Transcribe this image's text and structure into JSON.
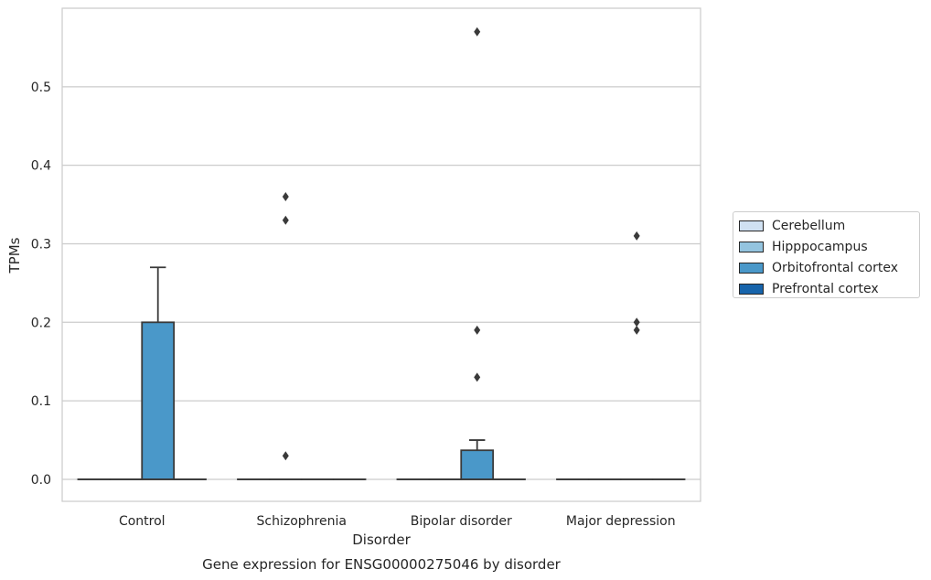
{
  "chart_data": {
    "type": "box",
    "xlabel": "Disorder",
    "ylabel": "TPMs",
    "caption": "Gene expression for ENSG00000275046 by disorder",
    "categories": [
      "Control",
      "Schizophrenia",
      "Bipolar disorder",
      "Major depression"
    ],
    "ylim": [
      -0.028,
      0.6
    ],
    "yticks": [
      "0.0",
      "0.1",
      "0.2",
      "0.3",
      "0.4",
      "0.5"
    ],
    "grid": "horizontal",
    "legend_position": "right",
    "series": [
      {
        "name": "Cerebellum",
        "color": "#d0e1f2",
        "boxes": [
          {
            "q1": 0,
            "median": 0,
            "q3": 0,
            "whisker_low": 0,
            "whisker_high": 0,
            "outliers": []
          },
          {
            "q1": 0,
            "median": 0,
            "q3": 0,
            "whisker_low": 0,
            "whisker_high": 0,
            "outliers": []
          },
          {
            "q1": 0,
            "median": 0,
            "q3": 0,
            "whisker_low": 0,
            "whisker_high": 0,
            "outliers": []
          },
          {
            "q1": 0,
            "median": 0,
            "q3": 0,
            "whisker_low": 0,
            "whisker_high": 0,
            "outliers": []
          }
        ]
      },
      {
        "name": "Hipppocampus",
        "color": "#94c4df",
        "boxes": [
          {
            "q1": 0,
            "median": 0,
            "q3": 0,
            "whisker_low": 0,
            "whisker_high": 0,
            "outliers": []
          },
          {
            "q1": 0,
            "median": 0,
            "q3": 0,
            "whisker_low": 0,
            "whisker_high": 0,
            "outliers": [
              0.36,
              0.33,
              0.03
            ]
          },
          {
            "q1": 0,
            "median": 0,
            "q3": 0,
            "whisker_low": 0,
            "whisker_high": 0,
            "outliers": []
          },
          {
            "q1": 0,
            "median": 0,
            "q3": 0,
            "whisker_low": 0,
            "whisker_high": 0,
            "outliers": []
          }
        ]
      },
      {
        "name": "Orbitofrontal cortex",
        "color": "#4a98c9",
        "boxes": [
          {
            "q1": 0,
            "median": 0,
            "q3": 0.2,
            "whisker_low": 0,
            "whisker_high": 0.27,
            "outliers": []
          },
          {
            "q1": 0,
            "median": 0,
            "q3": 0,
            "whisker_low": 0,
            "whisker_high": 0,
            "outliers": []
          },
          {
            "q1": 0,
            "median": 0,
            "q3": 0.037,
            "whisker_low": 0,
            "whisker_high": 0.05,
            "outliers": [
              0.57,
              0.19,
              0.13
            ]
          },
          {
            "q1": 0,
            "median": 0,
            "q3": 0,
            "whisker_low": 0,
            "whisker_high": 0,
            "outliers": [
              0.31,
              0.2,
              0.19
            ]
          }
        ]
      },
      {
        "name": "Prefrontal cortex",
        "color": "#1764ab",
        "boxes": [
          {
            "q1": 0,
            "median": 0,
            "q3": 0,
            "whisker_low": 0,
            "whisker_high": 0,
            "outliers": []
          },
          {
            "q1": 0,
            "median": 0,
            "q3": 0,
            "whisker_low": 0,
            "whisker_high": 0,
            "outliers": []
          },
          {
            "q1": 0,
            "median": 0,
            "q3": 0,
            "whisker_low": 0,
            "whisker_high": 0,
            "outliers": []
          },
          {
            "q1": 0,
            "median": 0,
            "q3": 0,
            "whisker_low": 0,
            "whisker_high": 0,
            "outliers": []
          }
        ]
      }
    ]
  }
}
